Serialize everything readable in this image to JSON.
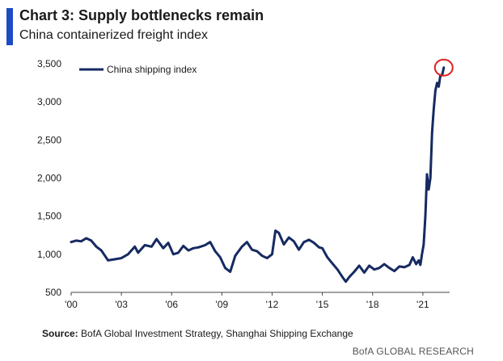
{
  "header": {
    "title": "Chart 3: Supply bottlenecks remain",
    "subtitle": "China containerized freight index"
  },
  "footer": {
    "source_label": "Source:",
    "source_text": "BofA Global Investment Strategy, Shanghai Shipping Exchange",
    "brand": "BofA GLOBAL RESEARCH"
  },
  "colors": {
    "accent": "#1c4bc4",
    "line": "#162a61",
    "highlight": "#e02020",
    "text": "#1a1a1a"
  },
  "chart_data": {
    "type": "line",
    "title": "Chart 3: Supply bottlenecks remain",
    "subtitle": "China containerized freight index",
    "xlabel": "",
    "ylabel": "",
    "xlim": [
      2000,
      2022.6
    ],
    "ylim": [
      500,
      3500
    ],
    "yticks": [
      500,
      1000,
      1500,
      2000,
      2500,
      3000,
      3500
    ],
    "ytick_labels": [
      "500",
      "1,000",
      "1,500",
      "2,000",
      "2,500",
      "3,000",
      "3,500"
    ],
    "xticks": [
      2000,
      2003,
      2006,
      2009,
      2012,
      2015,
      2018,
      2021
    ],
    "xtick_labels": [
      "'00",
      "'03",
      "'06",
      "'09",
      "'12",
      "'15",
      "'18",
      "'21"
    ],
    "grid": false,
    "legend": "top-left",
    "annotation": "red circle marking latest peak",
    "series": [
      {
        "name": "China shipping index",
        "x": [
          2000.0,
          2000.3,
          2000.6,
          2000.9,
          2001.2,
          2001.5,
          2001.8,
          2002.2,
          2002.5,
          2003.0,
          2003.4,
          2003.8,
          2004.0,
          2004.4,
          2004.8,
          2005.1,
          2005.5,
          2005.8,
          2006.1,
          2006.4,
          2006.7,
          2007.0,
          2007.3,
          2007.6,
          2008.0,
          2008.3,
          2008.6,
          2008.9,
          2009.2,
          2009.5,
          2009.8,
          2010.2,
          2010.5,
          2010.8,
          2011.1,
          2011.4,
          2011.7,
          2012.0,
          2012.2,
          2012.4,
          2012.7,
          2013.0,
          2013.3,
          2013.6,
          2013.9,
          2014.2,
          2014.5,
          2014.8,
          2015.0,
          2015.3,
          2015.6,
          2015.9,
          2016.2,
          2016.4,
          2016.6,
          2016.9,
          2017.2,
          2017.5,
          2017.8,
          2018.1,
          2018.4,
          2018.7,
          2019.0,
          2019.3,
          2019.6,
          2019.9,
          2020.2,
          2020.4,
          2020.6,
          2020.75,
          2020.85,
          2020.95,
          2021.05,
          2021.15,
          2021.25,
          2021.35,
          2021.45,
          2021.55,
          2021.65,
          2021.75,
          2021.85,
          2021.95,
          2022.05,
          2022.15,
          2022.25
        ],
        "values": [
          1160,
          1180,
          1170,
          1210,
          1180,
          1100,
          1050,
          920,
          930,
          950,
          1000,
          1100,
          1020,
          1120,
          1100,
          1200,
          1080,
          1150,
          1000,
          1020,
          1110,
          1050,
          1080,
          1090,
          1120,
          1160,
          1040,
          960,
          820,
          770,
          980,
          1100,
          1160,
          1060,
          1040,
          980,
          950,
          1000,
          1310,
          1280,
          1130,
          1220,
          1170,
          1060,
          1160,
          1190,
          1150,
          1090,
          1080,
          960,
          880,
          800,
          700,
          640,
          700,
          770,
          850,
          760,
          850,
          800,
          820,
          870,
          820,
          780,
          840,
          830,
          860,
          960,
          870,
          920,
          860,
          1000,
          1130,
          1500,
          2050,
          1850,
          2000,
          2600,
          2900,
          3150,
          3250,
          3200,
          3350,
          3350,
          3450
        ]
      }
    ]
  }
}
